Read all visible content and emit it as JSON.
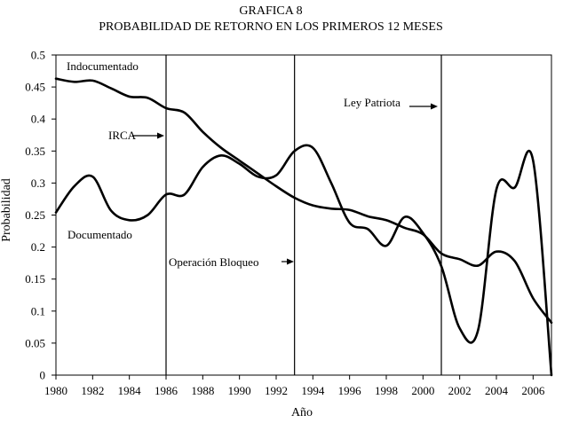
{
  "chart_data": {
    "type": "line",
    "title": "GRAFICA 8",
    "subtitle": "PROBABILIDAD DE RETORNO EN  LOS PRIMEROS 12 MESES",
    "xlabel": "Año",
    "ylabel": "Probabilidad",
    "xlim": [
      1980,
      2007
    ],
    "ylim": [
      0,
      0.5
    ],
    "x_ticks": [
      1980,
      1982,
      1984,
      1986,
      1988,
      1990,
      1992,
      1994,
      1996,
      1998,
      2000,
      2002,
      2004,
      2006
    ],
    "y_ticks": [
      0,
      0.05,
      0.1,
      0.15,
      0.2,
      0.25,
      0.3,
      0.35,
      0.4,
      0.45,
      0.5
    ],
    "y_tick_labels": [
      "0",
      "0.05",
      "0.1",
      "0.15",
      "0.2",
      "0.25",
      "0.3",
      "0.35",
      "0.4",
      "0.45",
      "0.5"
    ],
    "grid": false,
    "series": [
      {
        "name": "Indocumentado",
        "x": [
          1980,
          1981,
          1982,
          1983,
          1984,
          1985,
          1986,
          1987,
          1988,
          1989,
          1990,
          1991,
          1992,
          1993,
          1994,
          1995,
          1996,
          1997,
          1998,
          1999,
          2000,
          2001,
          2002,
          2003,
          2004,
          2005,
          2006,
          2007
        ],
        "values": [
          0.463,
          0.458,
          0.46,
          0.448,
          0.435,
          0.433,
          0.417,
          0.41,
          0.38,
          0.355,
          0.335,
          0.315,
          0.295,
          0.277,
          0.265,
          0.26,
          0.258,
          0.248,
          0.242,
          0.23,
          0.22,
          0.19,
          0.181,
          0.171,
          0.193,
          0.178,
          0.12,
          0.082
        ]
      },
      {
        "name": "Documentado",
        "x": [
          1980,
          1981,
          1982,
          1983,
          1984,
          1985,
          1986,
          1987,
          1988,
          1989,
          1990,
          1991,
          1992,
          1993,
          1994,
          1995,
          1996,
          1997,
          1998,
          1999,
          2000,
          2001,
          2002,
          2003,
          2004,
          2005,
          2006,
          2007
        ],
        "values": [
          0.254,
          0.295,
          0.31,
          0.257,
          0.242,
          0.25,
          0.282,
          0.282,
          0.325,
          0.343,
          0.33,
          0.31,
          0.312,
          0.35,
          0.355,
          0.3,
          0.238,
          0.228,
          0.202,
          0.247,
          0.222,
          0.17,
          0.073,
          0.07,
          0.29,
          0.293,
          0.335,
          0.0
        ]
      }
    ],
    "annotations": [
      {
        "label": "Indocumentado",
        "kind": "series-label"
      },
      {
        "label": "Documentado",
        "kind": "series-label"
      },
      {
        "label": "IRCA",
        "kind": "event",
        "year": 1986
      },
      {
        "label": "Operación Bloqueo",
        "kind": "event",
        "year": 1993
      },
      {
        "label": "Ley Patriota",
        "kind": "event",
        "year": 2001
      }
    ]
  }
}
